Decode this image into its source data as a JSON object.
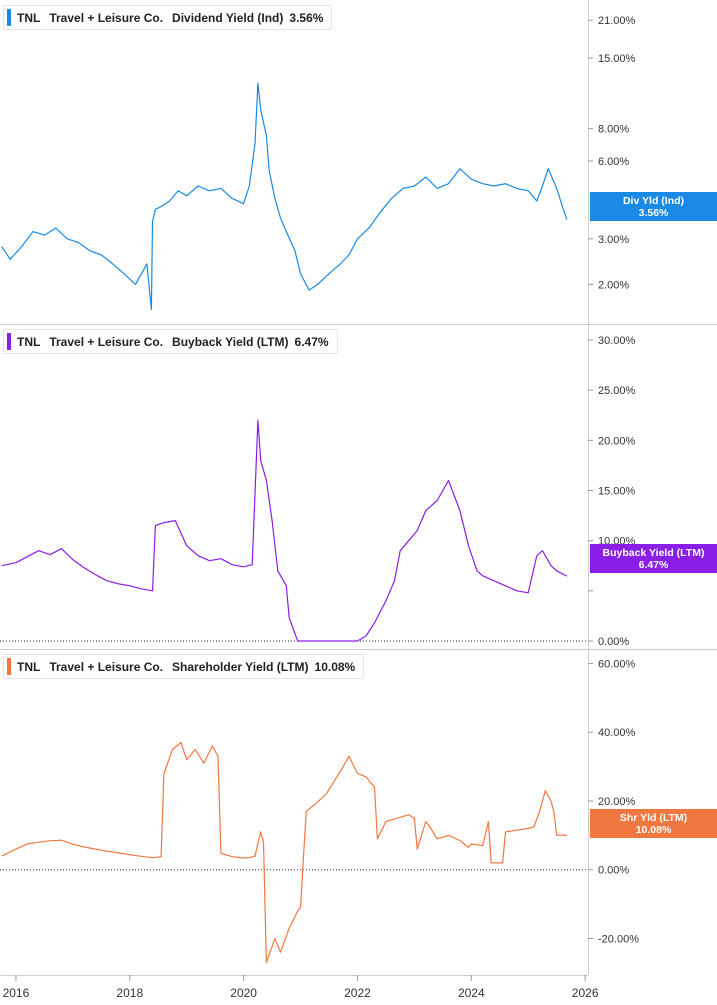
{
  "chart_data": [
    {
      "type": "line",
      "ticker": "TNL",
      "company": "Travel + Leisure Co.",
      "metric": "Dividend Yield (Ind)",
      "current_value": "3.56%",
      "end_label": "Div Yld (Ind)",
      "end_value": "3.56%",
      "color": "#1a8ae6",
      "scale": "log",
      "y_ticks": [
        2,
        3,
        6,
        8,
        15,
        21
      ],
      "y_tick_labels": [
        "2.00%",
        "3.00%",
        "6.00%",
        "8.00%",
        "15.00%",
        "21.00%"
      ],
      "ylim": [
        1.55,
        23
      ],
      "x": [
        2015.75,
        2015.9,
        2016.1,
        2016.3,
        2016.5,
        2016.7,
        2016.9,
        2017.1,
        2017.3,
        2017.5,
        2017.7,
        2017.9,
        2018.1,
        2018.3,
        2018.38,
        2018.4,
        2018.45,
        2018.55,
        2018.7,
        2018.85,
        2019.0,
        2019.2,
        2019.4,
        2019.6,
        2019.8,
        2020.0,
        2020.1,
        2020.2,
        2020.25,
        2020.3,
        2020.4,
        2020.45,
        2020.55,
        2020.65,
        2020.75,
        2020.9,
        2021.0,
        2021.15,
        2021.3,
        2021.5,
        2021.7,
        2021.85,
        2022.0,
        2022.2,
        2022.4,
        2022.6,
        2022.8,
        2023.0,
        2023.2,
        2023.4,
        2023.6,
        2023.8,
        2024.0,
        2024.2,
        2024.4,
        2024.6,
        2024.8,
        2025.0,
        2025.15,
        2025.25,
        2025.35,
        2025.5,
        2025.6,
        2025.68
      ],
      "values": [
        2.8,
        2.5,
        2.8,
        3.2,
        3.1,
        3.3,
        3.0,
        2.9,
        2.7,
        2.6,
        2.4,
        2.2,
        2.0,
        2.4,
        1.6,
        3.5,
        3.9,
        4.0,
        4.2,
        4.6,
        4.4,
        4.8,
        4.6,
        4.7,
        4.3,
        4.1,
        4.8,
        7.0,
        12.0,
        9.5,
        7.5,
        5.5,
        4.3,
        3.6,
        3.2,
        2.7,
        2.2,
        1.9,
        2.0,
        2.2,
        2.4,
        2.6,
        3.0,
        3.3,
        3.8,
        4.3,
        4.7,
        4.8,
        5.2,
        4.7,
        4.9,
        5.6,
        5.1,
        4.9,
        4.8,
        4.9,
        4.7,
        4.6,
        4.2,
        4.8,
        5.6,
        4.7,
        4.0,
        3.56
      ]
    },
    {
      "type": "line",
      "ticker": "TNL",
      "company": "Travel + Leisure Co.",
      "metric": "Buyback Yield (LTM)",
      "current_value": "6.47%",
      "end_label": "Buyback Yield (LTM)",
      "end_value": "6.47%",
      "color": "#8a1ee6",
      "scale": "linear",
      "y_ticks": [
        0,
        5,
        10,
        15,
        20,
        25,
        30
      ],
      "y_tick_labels": [
        "0.00%",
        "",
        "10.00%",
        "15.00%",
        "20.00%",
        "25.00%",
        "30.00%"
      ],
      "ylim": [
        -0.3,
        30.5
      ],
      "zero_line": true,
      "x": [
        2015.75,
        2016.0,
        2016.2,
        2016.4,
        2016.6,
        2016.8,
        2017.0,
        2017.2,
        2017.4,
        2017.6,
        2017.8,
        2018.0,
        2018.2,
        2018.4,
        2018.45,
        2018.6,
        2018.8,
        2019.0,
        2019.2,
        2019.4,
        2019.6,
        2019.8,
        2020.0,
        2020.15,
        2020.25,
        2020.3,
        2020.4,
        2020.5,
        2020.6,
        2020.75,
        2020.8,
        2020.95,
        2021.0,
        2021.2,
        2021.4,
        2021.6,
        2021.8,
        2022.0,
        2022.15,
        2022.3,
        2022.5,
        2022.65,
        2022.75,
        2022.9,
        2023.05,
        2023.2,
        2023.4,
        2023.6,
        2023.8,
        2023.95,
        2024.1,
        2024.2,
        2024.4,
        2024.6,
        2024.8,
        2025.0,
        2025.15,
        2025.25,
        2025.4,
        2025.5,
        2025.68
      ],
      "values": [
        7.5,
        7.8,
        8.4,
        9.0,
        8.6,
        9.2,
        8.1,
        7.3,
        6.6,
        6.0,
        5.7,
        5.5,
        5.2,
        5.0,
        11.5,
        11.8,
        12.0,
        9.5,
        8.5,
        8.0,
        8.2,
        7.6,
        7.4,
        7.6,
        22.0,
        18.0,
        16.0,
        12.0,
        7.0,
        5.5,
        2.3,
        0.0,
        0.0,
        0.0,
        0.0,
        0.0,
        0.0,
        0.0,
        0.5,
        1.8,
        4.0,
        6.0,
        9.0,
        10.0,
        11.0,
        13.0,
        14.0,
        16.0,
        13.0,
        9.5,
        7.0,
        6.5,
        6.0,
        5.5,
        5.0,
        4.8,
        8.5,
        9.0,
        7.5,
        7.0,
        6.47
      ]
    },
    {
      "type": "line",
      "ticker": "TNL",
      "company": "Travel + Leisure Co.",
      "metric": "Shareholder Yield (LTM)",
      "current_value": "10.08%",
      "end_label": "Shr Yld (LTM)",
      "end_value": "10.08%",
      "color": "#f07840",
      "scale": "linear",
      "y_ticks": [
        -20,
        0,
        20,
        40,
        60
      ],
      "y_tick_labels": [
        "-20.00%",
        "0.00%",
        "20.00%",
        "40.00%",
        "60.00%"
      ],
      "ylim": [
        -28,
        61
      ],
      "zero_line": true,
      "x": [
        2015.75,
        2016.0,
        2016.2,
        2016.4,
        2016.6,
        2016.8,
        2017.0,
        2017.2,
        2017.4,
        2017.6,
        2017.8,
        2018.0,
        2018.2,
        2018.4,
        2018.55,
        2018.6,
        2018.75,
        2018.9,
        2019.0,
        2019.15,
        2019.3,
        2019.45,
        2019.55,
        2019.6,
        2019.8,
        2020.0,
        2020.1,
        2020.2,
        2020.3,
        2020.35,
        2020.4,
        2020.55,
        2020.65,
        2020.8,
        2020.95,
        2021.0,
        2021.1,
        2021.25,
        2021.45,
        2021.6,
        2021.75,
        2021.85,
        2022.0,
        2022.15,
        2022.3,
        2022.35,
        2022.5,
        2022.7,
        2022.9,
        2023.0,
        2023.05,
        2023.2,
        2023.25,
        2023.4,
        2023.6,
        2023.8,
        2023.95,
        2024.0,
        2024.2,
        2024.3,
        2024.35,
        2024.55,
        2024.6,
        2024.8,
        2025.0,
        2025.1,
        2025.2,
        2025.3,
        2025.4,
        2025.45,
        2025.5,
        2025.68
      ],
      "values": [
        4.0,
        6.0,
        7.5,
        8.0,
        8.4,
        8.6,
        7.4,
        6.6,
        6.0,
        5.4,
        4.9,
        4.4,
        3.9,
        3.5,
        3.8,
        28.0,
        35.0,
        37.0,
        32.0,
        35.0,
        31.0,
        36.0,
        33.0,
        4.8,
        3.8,
        3.4,
        3.5,
        4.0,
        11.0,
        8.0,
        -27.0,
        -20.0,
        -24.0,
        -17.0,
        -12.0,
        -11.0,
        17.0,
        19.0,
        22.0,
        26.0,
        30.0,
        33.0,
        28.0,
        27.0,
        24.0,
        9.0,
        14.0,
        15.0,
        16.0,
        15.0,
        6.0,
        14.0,
        13.0,
        9.0,
        10.0,
        8.5,
        6.5,
        7.5,
        7.0,
        14.0,
        2.0,
        2.0,
        11.0,
        11.5,
        12.0,
        12.5,
        17.0,
        23.0,
        20.0,
        17.0,
        10.0,
        10.08
      ]
    }
  ],
  "x_axis": {
    "ticks": [
      2016,
      2018,
      2020,
      2022,
      2024,
      2026
    ],
    "tick_labels": [
      "2016",
      "2018",
      "2020",
      "2022",
      "2024",
      "2026"
    ],
    "xlim": [
      2015.72,
      2026.05
    ]
  },
  "grid": "off",
  "legend": "top-left"
}
